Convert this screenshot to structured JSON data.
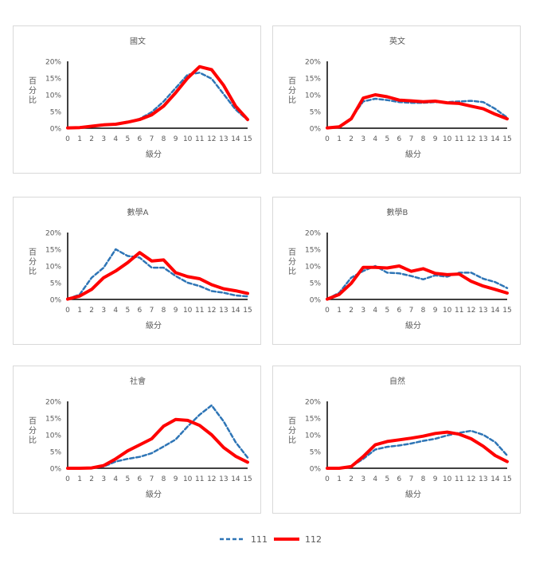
{
  "legend": [
    {
      "name": "111",
      "color": "#2e75b6",
      "dash": true
    },
    {
      "name": "112",
      "color": "#ff0000",
      "dash": false
    }
  ],
  "chart_data": [
    {
      "type": "line",
      "title": "國文",
      "xlabel": "級分",
      "ylabel": "百分比",
      "x": [
        0,
        1,
        2,
        3,
        4,
        5,
        6,
        7,
        8,
        9,
        10,
        11,
        12,
        13,
        14,
        15
      ],
      "ylim": [
        0,
        20
      ],
      "yticks": [
        "0%",
        "5%",
        "10%",
        "15%",
        "20%"
      ],
      "series": [
        {
          "name": "111",
          "values": [
            0.1,
            0.2,
            0.5,
            0.9,
            1.2,
            1.8,
            2.8,
            4.8,
            8.0,
            12.0,
            16.0,
            16.6,
            14.8,
            10.2,
            5.6,
            2.4
          ]
        },
        {
          "name": "112",
          "values": [
            0.1,
            0.2,
            0.6,
            1.0,
            1.2,
            1.8,
            2.6,
            4.0,
            6.6,
            10.6,
            15.0,
            18.4,
            17.5,
            12.8,
            6.6,
            2.6
          ]
        }
      ]
    },
    {
      "type": "line",
      "title": "英文",
      "xlabel": "級分",
      "ylabel": "百分比",
      "x": [
        0,
        1,
        2,
        3,
        4,
        5,
        6,
        7,
        8,
        9,
        10,
        11,
        12,
        13,
        14,
        15
      ],
      "ylim": [
        0,
        20
      ],
      "yticks": [
        "0%",
        "5%",
        "10%",
        "15%",
        "20%"
      ],
      "series": [
        {
          "name": "111",
          "values": [
            0.1,
            0.5,
            3.0,
            8.0,
            8.8,
            8.4,
            7.8,
            7.6,
            7.6,
            7.8,
            7.8,
            8.0,
            8.2,
            7.8,
            5.8,
            3.2
          ]
        },
        {
          "name": "112",
          "values": [
            0.1,
            0.4,
            2.8,
            9.0,
            10.0,
            9.4,
            8.4,
            8.2,
            7.9,
            8.1,
            7.6,
            7.4,
            6.6,
            5.8,
            4.2,
            2.8
          ]
        }
      ]
    },
    {
      "type": "line",
      "title": "數學A",
      "xlabel": "級分",
      "ylabel": "百分比",
      "x": [
        0,
        1,
        2,
        3,
        4,
        5,
        6,
        7,
        8,
        9,
        10,
        11,
        12,
        13,
        14,
        15
      ],
      "ylim": [
        0,
        20
      ],
      "yticks": [
        "0%",
        "5%",
        "10%",
        "15%",
        "20%"
      ],
      "series": [
        {
          "name": "111",
          "values": [
            0.1,
            1.5,
            6.5,
            9.5,
            15.0,
            13.0,
            12.5,
            9.5,
            9.5,
            7.0,
            5.0,
            4.0,
            2.5,
            2.0,
            1.2,
            0.9
          ]
        },
        {
          "name": "112",
          "values": [
            0.1,
            1.0,
            3.0,
            6.5,
            8.5,
            11.0,
            14.0,
            11.5,
            11.8,
            8.0,
            6.8,
            6.2,
            4.4,
            3.2,
            2.6,
            1.8
          ]
        }
      ]
    },
    {
      "type": "line",
      "title": "數學B",
      "xlabel": "級分",
      "ylabel": "百分比",
      "x": [
        0,
        1,
        2,
        3,
        4,
        5,
        6,
        7,
        8,
        9,
        10,
        11,
        12,
        13,
        14,
        15
      ],
      "ylim": [
        0,
        20
      ],
      "yticks": [
        "0%",
        "5%",
        "10%",
        "15%",
        "20%"
      ],
      "series": [
        {
          "name": "111",
          "values": [
            0.1,
            2.0,
            6.5,
            8.5,
            10.0,
            8.0,
            7.8,
            7.0,
            6.0,
            7.2,
            6.8,
            8.0,
            8.0,
            6.2,
            5.2,
            3.4
          ]
        },
        {
          "name": "112",
          "values": [
            0.1,
            1.5,
            4.8,
            9.6,
            9.6,
            9.4,
            10.0,
            8.4,
            9.2,
            7.8,
            7.4,
            7.6,
            5.4,
            4.0,
            3.0,
            1.9
          ]
        }
      ]
    },
    {
      "type": "line",
      "title": "社會",
      "xlabel": "級分",
      "ylabel": "百分比",
      "x": [
        0,
        1,
        2,
        3,
        4,
        5,
        6,
        7,
        8,
        9,
        10,
        11,
        12,
        13,
        14,
        15
      ],
      "ylim": [
        0,
        20
      ],
      "yticks": [
        "0%",
        "5%",
        "10%",
        "15%",
        "20%"
      ],
      "series": [
        {
          "name": "111",
          "values": [
            0.0,
            0.0,
            0.1,
            0.5,
            2.0,
            2.8,
            3.4,
            4.5,
            6.5,
            8.6,
            12.5,
            16.0,
            18.8,
            14.0,
            7.8,
            3.2
          ]
        },
        {
          "name": "112",
          "values": [
            0.0,
            0.0,
            0.1,
            0.8,
            2.8,
            5.2,
            7.0,
            8.8,
            12.6,
            14.6,
            14.3,
            12.8,
            10.0,
            6.2,
            3.6,
            1.8
          ]
        }
      ]
    },
    {
      "type": "line",
      "title": "自然",
      "xlabel": "級分",
      "ylabel": "百分比",
      "x": [
        0,
        1,
        2,
        3,
        4,
        5,
        6,
        7,
        8,
        9,
        10,
        11,
        12,
        13,
        14,
        15
      ],
      "ylim": [
        0,
        20
      ],
      "yticks": [
        "0%",
        "5%",
        "10%",
        "15%",
        "20%"
      ],
      "series": [
        {
          "name": "111",
          "values": [
            0.0,
            0.0,
            0.5,
            2.8,
            5.6,
            6.4,
            6.8,
            7.4,
            8.2,
            8.8,
            9.8,
            10.6,
            11.2,
            10.0,
            7.8,
            3.8
          ]
        },
        {
          "name": "112",
          "values": [
            0.0,
            0.0,
            0.5,
            3.5,
            7.0,
            8.0,
            8.5,
            9.0,
            9.6,
            10.4,
            10.8,
            10.2,
            8.8,
            6.6,
            3.8,
            2.0
          ]
        }
      ]
    }
  ]
}
